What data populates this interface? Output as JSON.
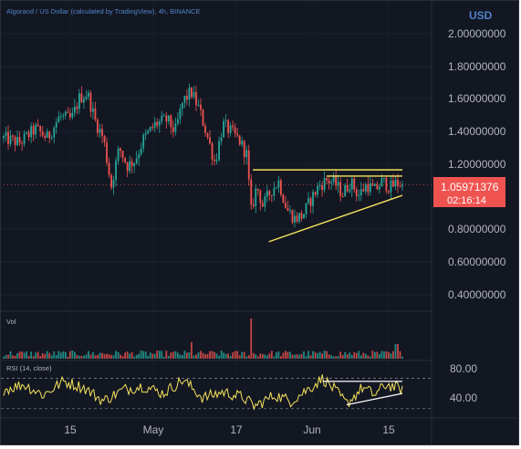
{
  "header": {
    "symbol_title": "Algorand / US Dollar (calculated by TradingView), 4h, BINANCE",
    "currency": "USD"
  },
  "price_label": {
    "value": "1.05971376",
    "countdown": "02:16:14"
  },
  "panes": {
    "volume_label": "Vol",
    "rsi_label": "RSI (14, close)"
  },
  "colors": {
    "background": "#131722",
    "up": "#26a69a",
    "down": "#ef5350",
    "trendline": "#f5e35c",
    "price_label_bg": "#ef5350",
    "rsi_line": "#f5e35c",
    "axis_text": "#b2b5be",
    "title_text": "#4f83c9"
  },
  "chart_data": [
    {
      "type": "candlestick",
      "title": "Algorand / US Dollar (calculated by TradingView), 4h, BINANCE",
      "y_axis_unit": "USD",
      "yticks": [
        "2.00000000",
        "1.80000000",
        "1.60000000",
        "1.40000000",
        "1.20000000",
        "0.80000000",
        "0.60000000",
        "0.40000000"
      ],
      "ylim": [
        0.27,
        2.13
      ],
      "xticks": [
        "15",
        "May",
        "17",
        "Jun",
        "15"
      ],
      "last_price": 1.05971376,
      "price_path": [
        {
          "t": 0,
          "v": 1.36
        },
        {
          "t": 0.04,
          "v": 1.33
        },
        {
          "t": 0.08,
          "v": 1.42
        },
        {
          "t": 0.11,
          "v": 1.36
        },
        {
          "t": 0.14,
          "v": 1.5
        },
        {
          "t": 0.17,
          "v": 1.48
        },
        {
          "t": 0.19,
          "v": 1.62
        },
        {
          "t": 0.21,
          "v": 1.65
        },
        {
          "t": 0.23,
          "v": 1.47
        },
        {
          "t": 0.25,
          "v": 1.36
        },
        {
          "t": 0.27,
          "v": 1.05
        },
        {
          "t": 0.29,
          "v": 1.3
        },
        {
          "t": 0.31,
          "v": 1.18
        },
        {
          "t": 0.33,
          "v": 1.22
        },
        {
          "t": 0.35,
          "v": 1.35
        },
        {
          "t": 0.38,
          "v": 1.45
        },
        {
          "t": 0.41,
          "v": 1.48
        },
        {
          "t": 0.43,
          "v": 1.4
        },
        {
          "t": 0.45,
          "v": 1.6
        },
        {
          "t": 0.47,
          "v": 1.66
        },
        {
          "t": 0.49,
          "v": 1.55
        },
        {
          "t": 0.51,
          "v": 1.38
        },
        {
          "t": 0.53,
          "v": 1.2
        },
        {
          "t": 0.55,
          "v": 1.45
        },
        {
          "t": 0.57,
          "v": 1.4
        },
        {
          "t": 0.59,
          "v": 1.35
        },
        {
          "t": 0.61,
          "v": 1.25
        },
        {
          "t": 0.62,
          "v": 0.88
        },
        {
          "t": 0.635,
          "v": 1.05
        },
        {
          "t": 0.65,
          "v": 0.92
        },
        {
          "t": 0.67,
          "v": 1.02
        },
        {
          "t": 0.69,
          "v": 1.08
        },
        {
          "t": 0.71,
          "v": 0.9
        },
        {
          "t": 0.73,
          "v": 0.84
        },
        {
          "t": 0.75,
          "v": 0.86
        },
        {
          "t": 0.77,
          "v": 0.96
        },
        {
          "t": 0.79,
          "v": 1.05
        },
        {
          "t": 0.81,
          "v": 1.09
        },
        {
          "t": 0.83,
          "v": 1.07
        },
        {
          "t": 0.85,
          "v": 1.0
        },
        {
          "t": 0.87,
          "v": 1.08
        },
        {
          "t": 0.89,
          "v": 0.99
        },
        {
          "t": 0.91,
          "v": 1.06
        },
        {
          "t": 0.93,
          "v": 1.02
        },
        {
          "t": 0.95,
          "v": 1.08
        },
        {
          "t": 0.97,
          "v": 1.04
        },
        {
          "t": 0.985,
          "v": 1.07
        },
        {
          "t": 1.0,
          "v": 1.06
        }
      ],
      "trendlines": [
        {
          "name": "resistance",
          "t0": 0.625,
          "v0": 1.155,
          "t1": 1.0,
          "v1": 1.155
        },
        {
          "name": "resistance-2",
          "t0": 0.81,
          "v0": 1.115,
          "t1": 1.0,
          "v1": 1.115
        },
        {
          "name": "support",
          "t0": 0.665,
          "v0": 0.69,
          "t1": 1.0,
          "v1": 0.99
        }
      ]
    },
    {
      "type": "bar",
      "title": "Vol",
      "spikes": [
        {
          "t": 0.62,
          "v": 1.0
        },
        {
          "t": 0.47,
          "v": 0.35
        },
        {
          "t": 0.985,
          "v": 0.3
        }
      ]
    },
    {
      "type": "line",
      "title": "RSI (14, close)",
      "yticks": [
        "80.00",
        "40.00"
      ],
      "ylim": [
        20,
        90
      ],
      "bands": [
        70,
        30
      ],
      "rsi_path": [
        {
          "t": 0,
          "v": 55
        },
        {
          "t": 0.05,
          "v": 62
        },
        {
          "t": 0.1,
          "v": 48
        },
        {
          "t": 0.15,
          "v": 66
        },
        {
          "t": 0.2,
          "v": 58
        },
        {
          "t": 0.25,
          "v": 40
        },
        {
          "t": 0.3,
          "v": 55
        },
        {
          "t": 0.35,
          "v": 60
        },
        {
          "t": 0.4,
          "v": 50
        },
        {
          "t": 0.45,
          "v": 68
        },
        {
          "t": 0.5,
          "v": 44
        },
        {
          "t": 0.55,
          "v": 52
        },
        {
          "t": 0.6,
          "v": 45
        },
        {
          "t": 0.63,
          "v": 33
        },
        {
          "t": 0.68,
          "v": 48
        },
        {
          "t": 0.72,
          "v": 40
        },
        {
          "t": 0.77,
          "v": 58
        },
        {
          "t": 0.8,
          "v": 70
        },
        {
          "t": 0.83,
          "v": 55
        },
        {
          "t": 0.86,
          "v": 36
        },
        {
          "t": 0.9,
          "v": 58
        },
        {
          "t": 0.93,
          "v": 48
        },
        {
          "t": 0.96,
          "v": 62
        },
        {
          "t": 1.0,
          "v": 55
        }
      ],
      "trendlines": [
        {
          "name": "rsi-resistance",
          "t0": 0.8,
          "v0": 66,
          "t1": 1.0,
          "v1": 66
        },
        {
          "name": "rsi-support",
          "t0": 0.86,
          "v0": 35,
          "t1": 1.0,
          "v1": 50
        }
      ]
    }
  ]
}
